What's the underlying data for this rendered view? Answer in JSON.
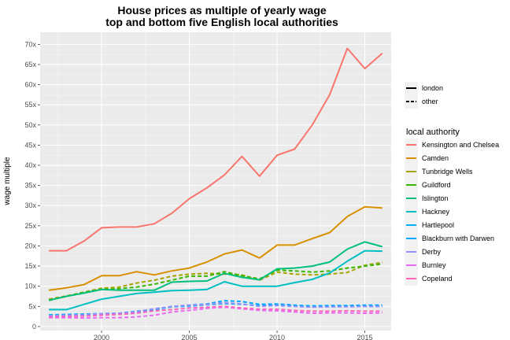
{
  "chart_data": {
    "type": "line",
    "title": "House prices as multiple of yearly wage",
    "subtitle": "top and bottom five English local authorities",
    "xlabel": "",
    "ylabel": "wage multiple",
    "xlim": [
      1996.5,
      2016.5
    ],
    "ylim": [
      -1,
      73
    ],
    "x_ticks": [
      2000,
      2005,
      2010,
      2015
    ],
    "y_ticks": [
      0,
      5,
      10,
      15,
      20,
      25,
      30,
      35,
      40,
      45,
      50,
      55,
      60,
      65,
      70
    ],
    "y_tick_labels": [
      "0",
      "5x",
      "10x",
      "15x",
      "20x",
      "25x",
      "30x",
      "35x",
      "40x",
      "45x",
      "50x",
      "55x",
      "60x",
      "65x",
      "70x"
    ],
    "grid": true,
    "linetype_legend": {
      "entries": [
        {
          "label": "london",
          "dash": "solid"
        },
        {
          "label": "other",
          "dash": "dashed"
        }
      ]
    },
    "color_legend": {
      "title": "local authority",
      "placement": "right"
    },
    "x": [
      1997,
      1998,
      1999,
      2000,
      2001,
      2002,
      2003,
      2004,
      2005,
      2006,
      2007,
      2008,
      2009,
      2010,
      2011,
      2012,
      2013,
      2014,
      2015,
      2016
    ],
    "series": [
      {
        "name": "Kensington and Chelsea",
        "color": "#F8766D",
        "dash": "solid",
        "values": [
          18.8,
          18.8,
          21.2,
          24.5,
          24.7,
          24.7,
          25.5,
          28.1,
          31.7,
          34.4,
          37.6,
          42.2,
          37.3,
          42.5,
          44.0,
          50.0,
          57.5,
          69.0,
          64.0,
          67.8
        ]
      },
      {
        "name": "Camden",
        "color": "#D89000",
        "dash": "solid",
        "values": [
          9.0,
          9.6,
          10.4,
          12.6,
          12.6,
          13.6,
          12.8,
          13.8,
          14.5,
          16.0,
          18.0,
          19.0,
          17.0,
          20.2,
          20.2,
          21.8,
          23.3,
          27.3,
          29.7,
          29.4
        ]
      },
      {
        "name": "Tunbridge Wells",
        "color": "#A3A500",
        "dash": "dashed",
        "values": [
          6.8,
          7.6,
          8.5,
          9.5,
          9.8,
          10.8,
          11.5,
          12.5,
          13.0,
          13.2,
          13.0,
          12.8,
          11.5,
          13.5,
          13.0,
          12.8,
          13.0,
          13.4,
          15.2,
          15.9
        ]
      },
      {
        "name": "Guildford",
        "color": "#39B600",
        "dash": "dashed",
        "values": [
          6.5,
          7.5,
          8.5,
          9.2,
          9.4,
          9.8,
          10.5,
          11.5,
          12.5,
          12.5,
          13.6,
          12.6,
          11.8,
          14.0,
          13.8,
          13.5,
          13.8,
          14.5,
          15.0,
          15.5
        ]
      },
      {
        "name": "Islington",
        "color": "#00BF7D",
        "dash": "solid",
        "values": [
          6.5,
          7.5,
          8.3,
          9.2,
          9.0,
          9.0,
          9.0,
          11.0,
          11.2,
          11.3,
          13.2,
          12.2,
          11.6,
          14.3,
          14.5,
          15.0,
          16.0,
          19.2,
          21.0,
          19.8
        ]
      },
      {
        "name": "Hackney",
        "color": "#00BFC4",
        "dash": "solid",
        "values": [
          4.2,
          4.2,
          5.5,
          6.8,
          7.5,
          8.2,
          8.5,
          8.9,
          9.0,
          9.2,
          11.1,
          10.0,
          10.0,
          10.0,
          10.9,
          11.7,
          13.3,
          16.2,
          18.8,
          18.7
        ]
      },
      {
        "name": "Hartlepool",
        "color": "#00B0F6",
        "dash": "dashed",
        "values": [
          2.9,
          3.0,
          3.1,
          3.2,
          3.3,
          3.8,
          4.3,
          4.9,
          5.1,
          5.4,
          5.7,
          5.5,
          5.2,
          5.3,
          5.1,
          4.9,
          4.9,
          5.0,
          5.0,
          5.0
        ]
      },
      {
        "name": "Blackburn with Darwen",
        "color": "#00A7FF",
        "dash": "dashed",
        "values": [
          2.6,
          2.7,
          2.9,
          3.2,
          3.2,
          3.5,
          4.2,
          4.9,
          5.3,
          5.6,
          6.4,
          6.2,
          5.5,
          5.6,
          5.3,
          5.1,
          5.2,
          5.2,
          5.3,
          5.3
        ]
      },
      {
        "name": "Derby",
        "color": "#9590FF",
        "dash": "dashed",
        "values": [
          2.7,
          2.8,
          2.9,
          3.2,
          3.3,
          3.7,
          4.4,
          5.0,
          5.3,
          5.5,
          5.9,
          5.6,
          5.0,
          5.2,
          5.0,
          4.8,
          4.9,
          4.9,
          5.0,
          5.0
        ]
      },
      {
        "name": "Burnley",
        "color": "#E76BF3",
        "dash": "dashed",
        "values": [
          2.2,
          2.2,
          2.1,
          2.2,
          2.2,
          2.4,
          2.8,
          3.6,
          4.0,
          4.5,
          4.8,
          4.4,
          4.0,
          3.9,
          3.6,
          3.3,
          3.4,
          3.4,
          3.3,
          3.4
        ]
      },
      {
        "name": "Copeland",
        "color": "#FF62BC",
        "dash": "dashed",
        "values": [
          2.4,
          2.5,
          2.6,
          2.8,
          3.0,
          3.3,
          3.9,
          4.2,
          4.6,
          4.8,
          5.0,
          4.6,
          4.3,
          4.3,
          4.0,
          3.8,
          3.8,
          3.9,
          3.8,
          3.8
        ]
      }
    ]
  }
}
